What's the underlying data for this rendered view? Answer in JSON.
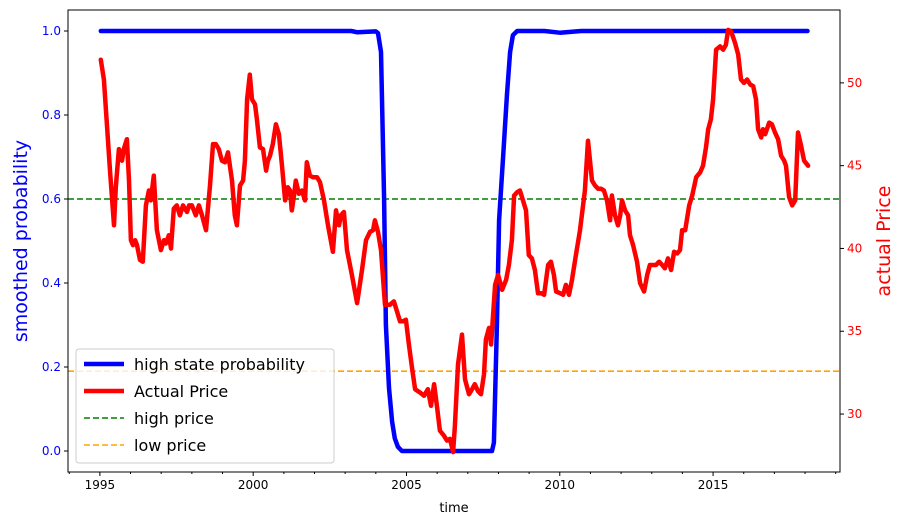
{
  "chart_data": {
    "type": "line",
    "title": "",
    "xlabel": "time",
    "ylabel_left": "smoothed probability",
    "ylabel_right": "actual Price",
    "xlim": [
      1993.96,
      2019.14
    ],
    "ylim_left": [
      -0.05,
      1.05
    ],
    "ylim_right": [
      26.5,
      54.4
    ],
    "x_ticks": [
      "1995",
      "2000",
      "2005",
      "2010",
      "2015"
    ],
    "x_tick_values": [
      1995,
      2000,
      2005,
      2010,
      2015
    ],
    "y_left_ticks": [
      "0.0",
      "0.2",
      "0.4",
      "0.6",
      "0.8",
      "1.0"
    ],
    "y_left_tick_values": [
      0,
      0.2,
      0.4,
      0.6,
      0.8,
      1.0
    ],
    "y_right_ticks": [
      "30",
      "35",
      "40",
      "45",
      "50"
    ],
    "y_right_tick_values": [
      30,
      35,
      40,
      45,
      50
    ],
    "grid": false,
    "legend_position": "lower-left",
    "legend": [
      "high state probability",
      "Actual Price",
      "high price",
      "low price"
    ],
    "colors": {
      "probability": "#0000ff",
      "price": "#ff0000",
      "high": "#008000",
      "low": "#ffa500"
    },
    "hlines": {
      "high_price_prob_axis": 0.6,
      "low_price_prob_axis": 0.19
    },
    "series": [
      {
        "name": "high state probability",
        "axis": "left",
        "points": [
          [
            1995.03,
            1.0
          ],
          [
            2003.2,
            1.0
          ],
          [
            2003.4,
            0.997
          ],
          [
            2004.0,
            0.999
          ],
          [
            2004.07,
            0.995
          ],
          [
            2004.17,
            0.95
          ],
          [
            2004.27,
            0.6
          ],
          [
            2004.33,
            0.3
          ],
          [
            2004.43,
            0.15
          ],
          [
            2004.53,
            0.07
          ],
          [
            2004.62,
            0.03
          ],
          [
            2004.72,
            0.01
          ],
          [
            2004.85,
            0.0
          ],
          [
            2007.79,
            0.0
          ],
          [
            2007.85,
            0.02
          ],
          [
            2007.95,
            0.3
          ],
          [
            2008.02,
            0.55
          ],
          [
            2008.15,
            0.7
          ],
          [
            2008.28,
            0.85
          ],
          [
            2008.38,
            0.95
          ],
          [
            2008.47,
            0.99
          ],
          [
            2008.61,
            1.0
          ],
          [
            2009.5,
            1.0
          ],
          [
            2010.0,
            0.996
          ],
          [
            2010.4,
            0.998
          ],
          [
            2010.7,
            1.0
          ],
          [
            2018.08,
            1.0
          ]
        ]
      },
      {
        "name": "Actual Price",
        "axis": "right",
        "points": [
          [
            1995.03,
            51.4
          ],
          [
            1995.13,
            50.2
          ],
          [
            1995.33,
            44.7
          ],
          [
            1995.46,
            41.4
          ],
          [
            1995.52,
            43.7
          ],
          [
            1995.62,
            46.0
          ],
          [
            1995.72,
            45.3
          ],
          [
            1995.78,
            46.0
          ],
          [
            1995.88,
            46.6
          ],
          [
            1995.95,
            44.1
          ],
          [
            1996.01,
            40.5
          ],
          [
            1996.08,
            40.2
          ],
          [
            1996.15,
            40.5
          ],
          [
            1996.21,
            40.2
          ],
          [
            1996.31,
            39.3
          ],
          [
            1996.4,
            39.2
          ],
          [
            1996.5,
            42.6
          ],
          [
            1996.6,
            43.5
          ],
          [
            1996.66,
            42.9
          ],
          [
            1996.76,
            44.4
          ],
          [
            1996.86,
            41.1
          ],
          [
            1996.99,
            39.9
          ],
          [
            1997.09,
            40.5
          ],
          [
            1997.15,
            40.3
          ],
          [
            1997.25,
            40.8
          ],
          [
            1997.32,
            40.0
          ],
          [
            1997.41,
            42.4
          ],
          [
            1997.51,
            42.6
          ],
          [
            1997.61,
            42.0
          ],
          [
            1997.71,
            42.6
          ],
          [
            1997.84,
            42.2
          ],
          [
            1997.91,
            42.6
          ],
          [
            1998.0,
            42.6
          ],
          [
            1998.13,
            42.0
          ],
          [
            1998.23,
            42.6
          ],
          [
            1998.33,
            42.0
          ],
          [
            1998.46,
            41.1
          ],
          [
            1998.59,
            43.8
          ],
          [
            1998.69,
            46.3
          ],
          [
            1998.78,
            46.3
          ],
          [
            1998.88,
            46.0
          ],
          [
            1998.98,
            45.3
          ],
          [
            1999.08,
            45.2
          ],
          [
            1999.18,
            45.8
          ],
          [
            1999.31,
            44.1
          ],
          [
            1999.4,
            42.0
          ],
          [
            1999.47,
            41.4
          ],
          [
            1999.57,
            43.8
          ],
          [
            1999.67,
            44.1
          ],
          [
            1999.73,
            45.3
          ],
          [
            1999.8,
            49.0
          ],
          [
            1999.89,
            50.5
          ],
          [
            1999.96,
            49.0
          ],
          [
            2000.06,
            48.7
          ],
          [
            2000.12,
            47.8
          ],
          [
            2000.22,
            46.1
          ],
          [
            2000.32,
            46.0
          ],
          [
            2000.42,
            44.7
          ],
          [
            2000.48,
            45.3
          ],
          [
            2000.55,
            45.6
          ],
          [
            2000.64,
            46.3
          ],
          [
            2000.74,
            47.5
          ],
          [
            2000.84,
            46.9
          ],
          [
            2000.94,
            45.0
          ],
          [
            2001.04,
            42.9
          ],
          [
            2001.13,
            43.7
          ],
          [
            2001.2,
            43.5
          ],
          [
            2001.26,
            42.3
          ],
          [
            2001.33,
            43.2
          ],
          [
            2001.39,
            44.1
          ],
          [
            2001.49,
            43.3
          ],
          [
            2001.59,
            43.5
          ],
          [
            2001.69,
            42.9
          ],
          [
            2001.75,
            45.2
          ],
          [
            2001.85,
            44.4
          ],
          [
            2001.95,
            44.3
          ],
          [
            2002.08,
            44.3
          ],
          [
            2002.18,
            44.0
          ],
          [
            2002.31,
            42.9
          ],
          [
            2002.44,
            41.4
          ],
          [
            2002.6,
            39.8
          ],
          [
            2002.7,
            42.3
          ],
          [
            2002.8,
            41.4
          ],
          [
            2002.86,
            42.0
          ],
          [
            2002.96,
            42.2
          ],
          [
            2003.06,
            39.9
          ],
          [
            2003.22,
            38.4
          ],
          [
            2003.39,
            36.7
          ],
          [
            2003.55,
            38.7
          ],
          [
            2003.68,
            40.5
          ],
          [
            2003.81,
            41.0
          ],
          [
            2003.91,
            41.1
          ],
          [
            2003.97,
            41.7
          ],
          [
            2004.07,
            41.0
          ],
          [
            2004.17,
            39.9
          ],
          [
            2004.3,
            36.6
          ],
          [
            2004.46,
            36.6
          ],
          [
            2004.59,
            36.8
          ],
          [
            2004.69,
            36.2
          ],
          [
            2004.79,
            35.6
          ],
          [
            2004.89,
            35.6
          ],
          [
            2004.98,
            35.7
          ],
          [
            2005.08,
            34.2
          ],
          [
            2005.18,
            32.8
          ],
          [
            2005.28,
            31.5
          ],
          [
            2005.44,
            31.3
          ],
          [
            2005.57,
            31.1
          ],
          [
            2005.7,
            31.5
          ],
          [
            2005.8,
            30.5
          ],
          [
            2005.9,
            31.8
          ],
          [
            2006.0,
            30.4
          ],
          [
            2006.09,
            29.0
          ],
          [
            2006.22,
            28.7
          ],
          [
            2006.32,
            28.4
          ],
          [
            2006.42,
            28.5
          ],
          [
            2006.52,
            27.7
          ],
          [
            2006.58,
            29.3
          ],
          [
            2006.68,
            33.0
          ],
          [
            2006.81,
            34.8
          ],
          [
            2006.91,
            32.1
          ],
          [
            2007.04,
            31.2
          ],
          [
            2007.14,
            31.5
          ],
          [
            2007.23,
            31.8
          ],
          [
            2007.33,
            31.4
          ],
          [
            2007.43,
            31.2
          ],
          [
            2007.53,
            32.4
          ],
          [
            2007.59,
            34.5
          ],
          [
            2007.69,
            35.2
          ],
          [
            2007.76,
            34.2
          ],
          [
            2007.89,
            37.8
          ],
          [
            2007.99,
            38.4
          ],
          [
            2008.12,
            37.5
          ],
          [
            2008.25,
            38.1
          ],
          [
            2008.34,
            39.0
          ],
          [
            2008.44,
            40.5
          ],
          [
            2008.51,
            43.2
          ],
          [
            2008.61,
            43.4
          ],
          [
            2008.7,
            43.5
          ],
          [
            2008.8,
            42.9
          ],
          [
            2008.9,
            42.3
          ],
          [
            2008.99,
            39.6
          ],
          [
            2009.09,
            39.4
          ],
          [
            2009.19,
            38.7
          ],
          [
            2009.29,
            37.3
          ],
          [
            2009.39,
            37.3
          ],
          [
            2009.49,
            37.2
          ],
          [
            2009.62,
            39.0
          ],
          [
            2009.71,
            39.2
          ],
          [
            2009.81,
            38.4
          ],
          [
            2009.88,
            37.4
          ],
          [
            2010.01,
            37.3
          ],
          [
            2010.11,
            37.2
          ],
          [
            2010.2,
            37.8
          ],
          [
            2010.3,
            37.2
          ],
          [
            2010.4,
            38.1
          ],
          [
            2010.5,
            39.3
          ],
          [
            2010.66,
            41.1
          ],
          [
            2010.82,
            43.5
          ],
          [
            2010.92,
            46.5
          ],
          [
            2011.05,
            44.1
          ],
          [
            2011.15,
            43.8
          ],
          [
            2011.25,
            43.6
          ],
          [
            2011.35,
            43.6
          ],
          [
            2011.44,
            43.5
          ],
          [
            2011.54,
            42.9
          ],
          [
            2011.64,
            41.7
          ],
          [
            2011.7,
            43.2
          ],
          [
            2011.8,
            42.0
          ],
          [
            2011.9,
            41.4
          ],
          [
            2011.97,
            42.0
          ],
          [
            2012.03,
            42.9
          ],
          [
            2012.13,
            42.3
          ],
          [
            2012.23,
            42.0
          ],
          [
            2012.29,
            40.8
          ],
          [
            2012.39,
            40.2
          ],
          [
            2012.52,
            39.2
          ],
          [
            2012.62,
            37.9
          ],
          [
            2012.75,
            37.4
          ],
          [
            2012.85,
            38.4
          ],
          [
            2012.94,
            39.0
          ],
          [
            2013.04,
            39.0
          ],
          [
            2013.14,
            39.0
          ],
          [
            2013.24,
            39.2
          ],
          [
            2013.34,
            39.0
          ],
          [
            2013.43,
            38.8
          ],
          [
            2013.53,
            39.4
          ],
          [
            2013.63,
            38.7
          ],
          [
            2013.73,
            39.8
          ],
          [
            2013.83,
            39.7
          ],
          [
            2013.92,
            39.9
          ],
          [
            2013.99,
            41.1
          ],
          [
            2014.09,
            41.1
          ],
          [
            2014.22,
            42.6
          ],
          [
            2014.32,
            43.2
          ],
          [
            2014.45,
            44.3
          ],
          [
            2014.58,
            44.6
          ],
          [
            2014.67,
            45.0
          ],
          [
            2014.77,
            46.1
          ],
          [
            2014.84,
            47.2
          ],
          [
            2014.93,
            47.8
          ],
          [
            2015.0,
            49.0
          ],
          [
            2015.1,
            52.0
          ],
          [
            2015.23,
            52.2
          ],
          [
            2015.33,
            52.0
          ],
          [
            2015.42,
            52.3
          ],
          [
            2015.49,
            53.2
          ],
          [
            2015.59,
            53.1
          ],
          [
            2015.72,
            52.4
          ],
          [
            2015.82,
            51.7
          ],
          [
            2015.91,
            50.2
          ],
          [
            2016.01,
            50.0
          ],
          [
            2016.11,
            50.2
          ],
          [
            2016.21,
            49.9
          ],
          [
            2016.31,
            49.8
          ],
          [
            2016.4,
            49.0
          ],
          [
            2016.47,
            47.2
          ],
          [
            2016.57,
            46.7
          ],
          [
            2016.63,
            47.2
          ],
          [
            2016.7,
            46.9
          ],
          [
            2016.83,
            47.6
          ],
          [
            2016.92,
            47.5
          ],
          [
            2017.02,
            47.0
          ],
          [
            2017.12,
            46.6
          ],
          [
            2017.22,
            45.6
          ],
          [
            2017.32,
            45.3
          ],
          [
            2017.38,
            45.0
          ],
          [
            2017.48,
            43.1
          ],
          [
            2017.58,
            42.6
          ],
          [
            2017.68,
            42.9
          ],
          [
            2017.77,
            47.0
          ],
          [
            2017.87,
            46.2
          ],
          [
            2017.97,
            45.3
          ],
          [
            2018.1,
            45.0
          ]
        ]
      }
    ]
  }
}
